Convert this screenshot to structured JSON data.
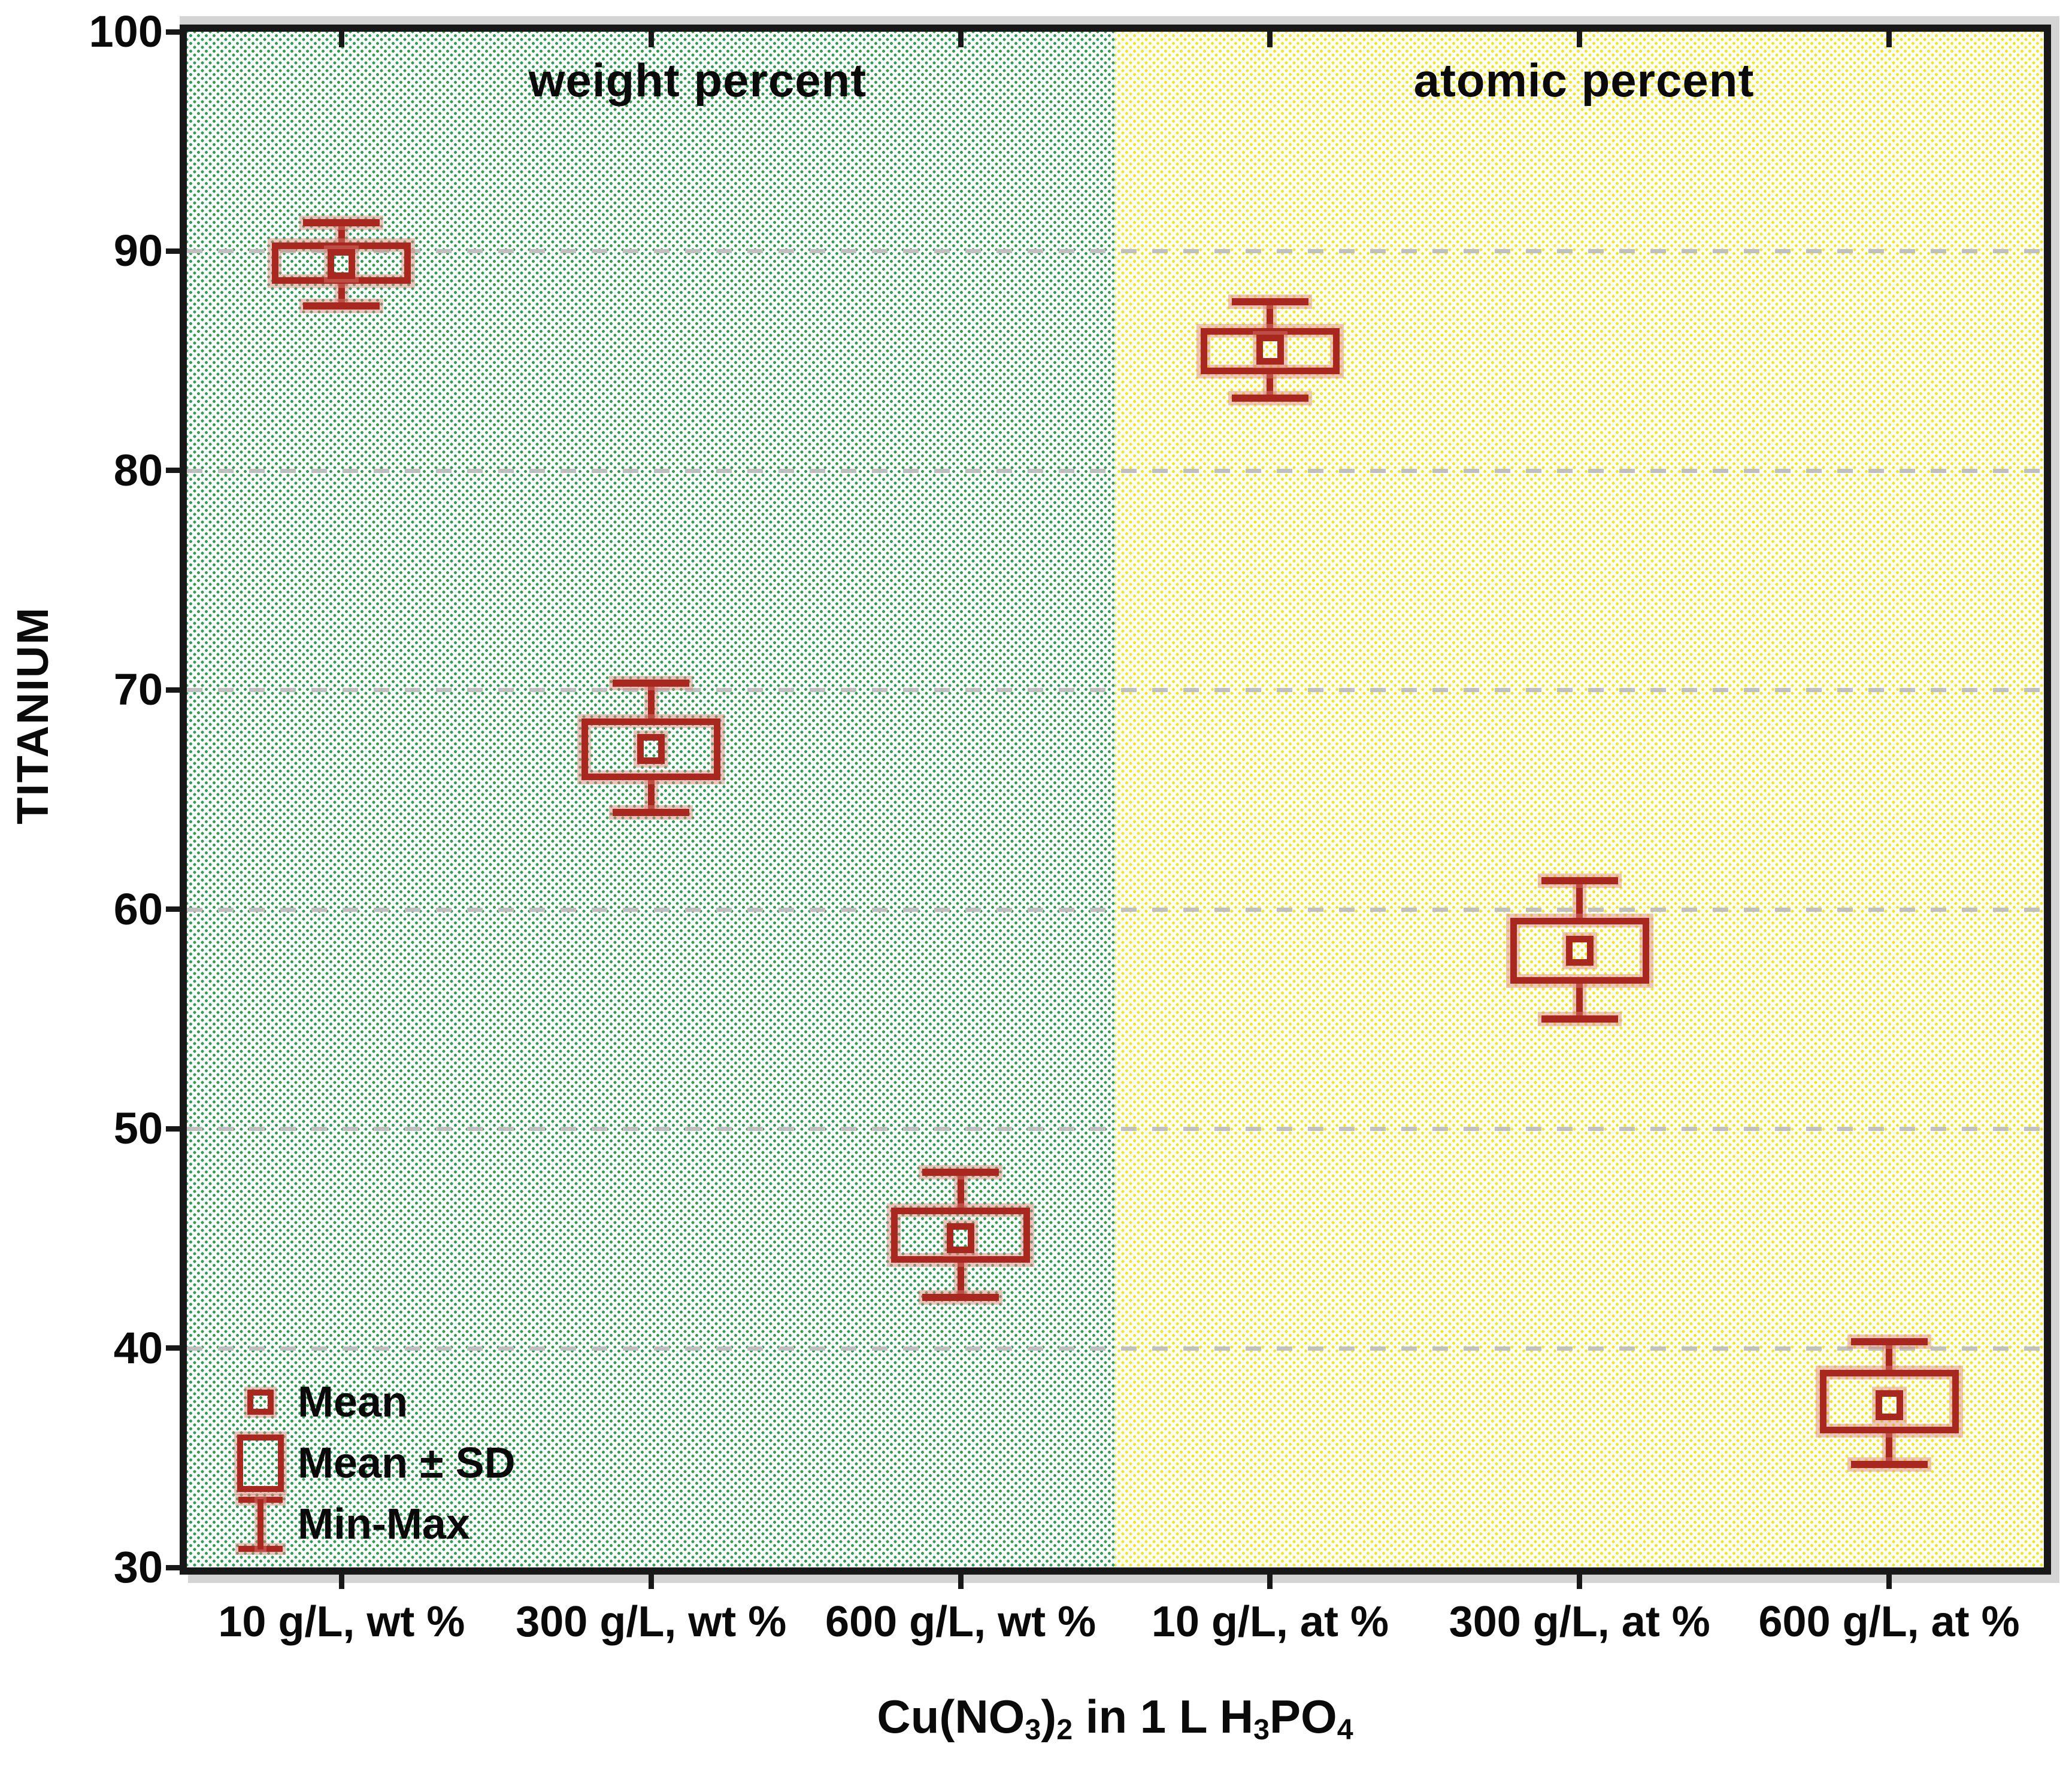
{
  "chart_data": {
    "type": "box",
    "title": "",
    "ylabel": "TITANIUM",
    "xlabel": "Cu(NO3)2 in 1 L H3PO4",
    "xlabel_segments": [
      {
        "text": "Cu(NO"
      },
      {
        "text": "3",
        "sub": true
      },
      {
        "text": ")"
      },
      {
        "text": "2",
        "sub": true
      },
      {
        "text": " in 1 L H"
      },
      {
        "text": "3",
        "sub": true
      },
      {
        "text": "PO"
      },
      {
        "text": "4",
        "sub": true
      }
    ],
    "ylim": [
      30,
      100
    ],
    "yticks": [
      30,
      40,
      50,
      60,
      70,
      80,
      90,
      100
    ],
    "grid": "horizontal-dashed",
    "legend_position": "bottom-left",
    "categories": [
      "10 g/L, wt %",
      "300 g/L, wt %",
      "600 g/L, wt %",
      "10 g/L, at %",
      "300 g/L, at %",
      "600 g/L, at %"
    ],
    "series": [
      {
        "name": "TITANIUM",
        "points": [
          {
            "category": "10 g/L, wt %",
            "mean": 89.4,
            "sd_low": 88.5,
            "sd_high": 90.4,
            "min": 87.5,
            "max": 91.3
          },
          {
            "category": "300 g/L, wt %",
            "mean": 67.3,
            "sd_low": 65.9,
            "sd_high": 68.7,
            "min": 64.4,
            "max": 70.3
          },
          {
            "category": "600 g/L, wt %",
            "mean": 45.0,
            "sd_low": 43.9,
            "sd_high": 46.4,
            "min": 42.3,
            "max": 48.0
          },
          {
            "category": "10 g/L, at %",
            "mean": 85.5,
            "sd_low": 84.4,
            "sd_high": 86.5,
            "min": 83.3,
            "max": 87.7
          },
          {
            "category": "300 g/L, at %",
            "mean": 58.1,
            "sd_low": 56.6,
            "sd_high": 59.6,
            "min": 55.0,
            "max": 61.3
          },
          {
            "category": "600 g/L, at %",
            "mean": 37.4,
            "sd_low": 36.1,
            "sd_high": 39.0,
            "min": 34.7,
            "max": 40.3
          }
        ]
      }
    ],
    "regions": [
      {
        "label": "weight percent",
        "categories": [
          0,
          1,
          2
        ],
        "background": "green-dotted"
      },
      {
        "label": "atomic percent",
        "categories": [
          3,
          4,
          5
        ],
        "background": "yellow-dotted"
      }
    ],
    "legend": {
      "position": "bottom-left",
      "items": [
        {
          "symbol": "mean-square",
          "label": "Mean"
        },
        {
          "symbol": "sd-box",
          "label": "Mean ± SD"
        },
        {
          "symbol": "min-max-whisker",
          "label": "Min-Max"
        }
      ]
    }
  },
  "colors": {
    "box_red": "#a8271f",
    "box_halo": "rgba(214,126,115,0.45)",
    "dot_green": "#2e9e53",
    "dot_yellow": "#efe81c",
    "gridline": "#bdbdbd",
    "frame": "#181818",
    "frame_shadow": "#d4d4d4",
    "text": "#0a0a0a",
    "background": "#ffffff"
  }
}
